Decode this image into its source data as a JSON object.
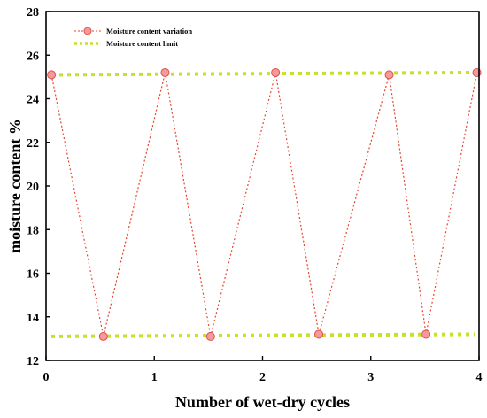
{
  "chart_data": {
    "type": "line",
    "title": "",
    "xlabel": "Number of wet-dry cycles",
    "ylabel": "moisture content  %",
    "xlim": [
      0,
      4
    ],
    "ylim": [
      12,
      28
    ],
    "xticks": [
      "0",
      "1",
      "2",
      "3",
      "4"
    ],
    "yticks": [
      "12",
      "14",
      "16",
      "18",
      "20",
      "22",
      "24",
      "26",
      "28"
    ],
    "grid": false,
    "legend_position": "top-left",
    "series": [
      {
        "name": "Moisture content variation",
        "style": "dotted-line-with-circle-markers",
        "line_color": "#e8452f",
        "marker_fill": "#f59a98",
        "marker_edge": "#d9534f",
        "x": [
          0.05,
          0.53,
          1.1,
          1.52,
          2.12,
          2.52,
          3.17,
          3.51,
          3.98
        ],
        "values": [
          25.1,
          13.1,
          25.2,
          13.1,
          25.2,
          13.2,
          25.1,
          13.2,
          25.2
        ]
      },
      {
        "name": "Moisture content limit",
        "style": "thick-dotted-line",
        "line_color": "#c8e028",
        "x": [
          0,
          4
        ],
        "values": [
          25.1,
          13.1
        ]
      }
    ],
    "limit_lines": [
      {
        "y_start": 25.1,
        "y_end": 25.2
      },
      {
        "y_start": 13.1,
        "y_end": 13.2
      }
    ]
  }
}
